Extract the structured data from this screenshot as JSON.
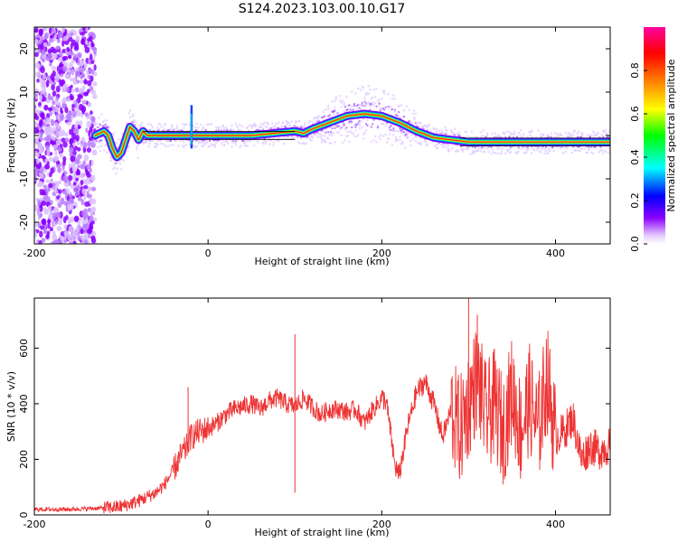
{
  "title": "S124.2023.103.00.10.G17",
  "chart_data": [
    {
      "type": "heatmap",
      "xlabel": "Height of straight line (km)",
      "ylabel": "Frequency (Hz)",
      "xlim": [
        -200,
        463
      ],
      "ylim": [
        -25,
        25
      ],
      "xticks": [
        -200,
        0,
        200,
        400
      ],
      "yticks": [
        -20,
        -10,
        0,
        10,
        20
      ],
      "grid": false,
      "ridge": {
        "x": [
          -130,
          -125,
          -120,
          -115,
          -110,
          -105,
          -100,
          -95,
          -90,
          -85,
          -80,
          -75,
          -70,
          -40,
          -20,
          0,
          50,
          100,
          110,
          120,
          140,
          160,
          180,
          200,
          220,
          240,
          260,
          280,
          300,
          320,
          350,
          400,
          463
        ],
        "y": [
          0,
          0.5,
          1,
          0,
          -3,
          -5,
          -4,
          -1,
          2,
          1,
          -1,
          1,
          0,
          0,
          0,
          0,
          0,
          1,
          0.5,
          1.5,
          3,
          4.5,
          5,
          4.5,
          3,
          1,
          -0.5,
          -1,
          -1.5,
          -1.5,
          -1.5,
          -1.5,
          -1.5
        ]
      },
      "colorbar": {
        "label": "Normalized spectral amplitude",
        "range": [
          0,
          1
        ],
        "ticks": [
          0.0,
          0.2,
          0.4,
          0.6,
          0.8
        ],
        "colormap": [
          "#ffffff",
          "#e5c8ff",
          "#8b00ff",
          "#0000ff",
          "#00ffff",
          "#00ff00",
          "#ffff00",
          "#ff8000",
          "#ff0000",
          "#ff00a0"
        ]
      }
    },
    {
      "type": "line",
      "xlabel": "Height of straight line (km)",
      "ylabel": "SNR (10 * v/v)",
      "xlim": [
        -200,
        463
      ],
      "ylim": [
        0,
        780
      ],
      "xticks": [
        -200,
        0,
        200,
        400
      ],
      "yticks": [
        0,
        200,
        400,
        600
      ],
      "grid": false,
      "series": [
        {
          "color": "#ee3333",
          "x": [
            -200,
            -160,
            -120,
            -100,
            -80,
            -60,
            -50,
            -40,
            -30,
            -25,
            -20,
            -10,
            0,
            10,
            20,
            30,
            40,
            50,
            60,
            70,
            80,
            90,
            100,
            110,
            120,
            130,
            140,
            150,
            160,
            170,
            180,
            190,
            200,
            205,
            210,
            215,
            220,
            230,
            240,
            250,
            260,
            270,
            280,
            290,
            300,
            310,
            320,
            330,
            340,
            350,
            360,
            370,
            380,
            390,
            400,
            410,
            420,
            430,
            440,
            450,
            463
          ],
          "y": [
            20,
            20,
            25,
            30,
            50,
            80,
            110,
            160,
            220,
            240,
            280,
            300,
            310,
            330,
            360,
            380,
            390,
            400,
            380,
            410,
            420,
            400,
            390,
            420,
            390,
            360,
            380,
            380,
            370,
            380,
            330,
            380,
            420,
            410,
            300,
            180,
            140,
            320,
            440,
            480,
            400,
            280,
            380,
            300,
            400,
            500,
            350,
            400,
            300,
            450,
            300,
            420,
            300,
            500,
            280,
            300,
            350,
            200,
            250,
            230,
            250
          ]
        }
      ],
      "spikes": [
        {
          "x": -23,
          "y": 460
        },
        {
          "x": 100,
          "y": 650
        },
        {
          "x": 100,
          "y": 80
        },
        {
          "x": 300,
          "y": 780
        },
        {
          "x": 310,
          "y": 720
        }
      ]
    }
  ]
}
